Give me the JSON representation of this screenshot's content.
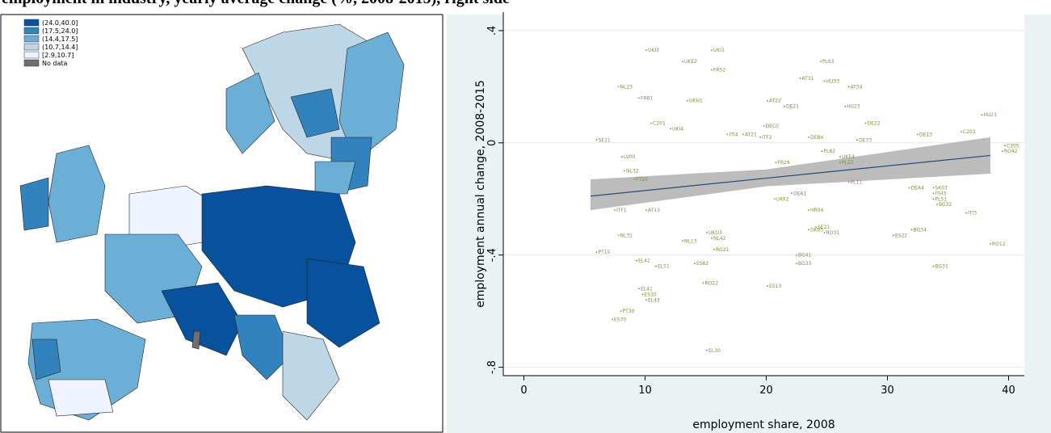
{
  "title": "employment in industry, yearly average change (%, 2008-2015), right side",
  "chart_data": [
    {
      "type": "choropleth",
      "legend": [
        {
          "label": "(24.0,40.0]",
          "color": "#08519c"
        },
        {
          "label": "(17.5,24.0]",
          "color": "#3182bd"
        },
        {
          "label": "(14.4,17.5]",
          "color": "#6baed6"
        },
        {
          "label": "(10.7,14.4]",
          "color": "#bdd7e7"
        },
        {
          "label": "[2.9,10.7]",
          "color": "#eff3ff"
        },
        {
          "label": "No data",
          "color": "#6e6e6e"
        }
      ]
    },
    {
      "type": "scatter",
      "xlabel": "employment share, 2008",
      "ylabel": "employment annual change, 2008-2015",
      "xlim": [
        -1.7,
        41.3
      ],
      "ylim": [
        -0.83,
        0.466
      ],
      "xticks": [
        0,
        10,
        20,
        30,
        40
      ],
      "yticks": [
        {
          "value": 0.4,
          "label": ".4"
        },
        0,
        {
          "value": -0.4,
          "label": "-.4"
        },
        {
          "value": -0.8,
          "label": "-.8"
        }
      ],
      "grid": true,
      "color": "#7f8f3f",
      "fit_color": "#1f4e79",
      "band_color": "#b0b0b0",
      "labels": [
        "UKI3",
        "UKI1",
        "UKE2",
        "FR52",
        "PL63",
        "AT31",
        "HU33",
        "AT34",
        "NL23",
        "FR81",
        "UKH1",
        "AT22",
        "DE21",
        "HU23",
        "HU21",
        "C201",
        "UKI4",
        "ITI4",
        "AT21",
        "ITF2",
        "DE13",
        "C203",
        "SE11",
        "C205",
        "RO42",
        "LV00",
        "NL32",
        "PL62",
        "FR26",
        "UKE4",
        "PT20",
        "ITF1",
        "AT13",
        "DEA4",
        "SK03",
        "ITH3",
        "PL51",
        "BG32",
        "ITI3",
        "HR04",
        "NL31",
        "NL13",
        "NL42",
        "RO21",
        "SE21",
        "RO31",
        "ES22",
        "BG34",
        "RO12",
        "PT15",
        "EL42",
        "EL51",
        "ES62",
        "BG41",
        "BG33",
        "BG31",
        "RO22",
        "ES13",
        "EL41",
        "ES10",
        "EL43",
        "PT30",
        "ES70",
        "EL30",
        "DEA1",
        "UKF2",
        "DE73",
        "DE22",
        "UKD3",
        "DK05",
        "PL22",
        "PL11",
        "DEB4",
        "DEC0"
      ],
      "x": [
        10.1,
        15.5,
        13.1,
        15.5,
        24.5,
        22.8,
        24.8,
        26.8,
        7.8,
        9.5,
        13.5,
        20.1,
        21.5,
        26.5,
        37.8,
        10.5,
        12.1,
        16.8,
        18.1,
        19.5,
        32.5,
        36.1,
        6.0,
        39.7,
        39.5,
        8.1,
        8.3,
        24.6,
        20.8,
        26.1,
        9.1,
        7.5,
        10.1,
        31.8,
        33.8,
        33.8,
        33.8,
        34.1,
        36.5,
        23.5,
        7.8,
        13.1,
        15.5,
        15.7,
        24.1,
        24.8,
        30.5,
        32.0,
        38.5,
        6.0,
        9.3,
        10.9,
        14.1,
        22.5,
        22.5,
        33.8,
        14.8,
        20.1,
        9.5,
        9.8,
        10.1,
        8.0,
        7.3,
        15.1,
        22.1,
        20.7,
        27.5,
        28.2,
        15.1,
        23.5,
        26.1,
        26.8,
        23.5,
        19.8
      ],
      "y": [
        0.33,
        0.33,
        0.29,
        0.26,
        0.29,
        0.23,
        0.22,
        0.2,
        0.2,
        0.16,
        0.15,
        0.15,
        0.13,
        0.13,
        0.1,
        0.07,
        0.05,
        0.03,
        0.03,
        0.02,
        0.03,
        0.04,
        0.01,
        -0.01,
        -0.03,
        -0.05,
        -0.1,
        -0.03,
        -0.07,
        -0.05,
        -0.13,
        -0.24,
        -0.24,
        -0.16,
        -0.16,
        -0.18,
        -0.2,
        -0.22,
        -0.25,
        -0.24,
        -0.33,
        -0.35,
        -0.34,
        -0.38,
        -0.3,
        -0.32,
        -0.33,
        -0.31,
        -0.36,
        -0.39,
        -0.42,
        -0.44,
        -0.43,
        -0.4,
        -0.43,
        -0.44,
        -0.5,
        -0.51,
        -0.52,
        -0.54,
        -0.56,
        -0.6,
        -0.63,
        -0.74,
        -0.18,
        -0.2,
        0.01,
        0.07,
        -0.32,
        -0.31,
        -0.07,
        -0.14,
        0.02,
        0.06
      ],
      "fit": {
        "x": [
          5.5,
          20,
          38.5
        ],
        "y": [
          -0.19,
          -0.126,
          -0.045
        ],
        "upper": [
          -0.13,
          -0.095,
          0.02
        ],
        "lower": [
          -0.24,
          -0.155,
          -0.11
        ]
      }
    }
  ]
}
